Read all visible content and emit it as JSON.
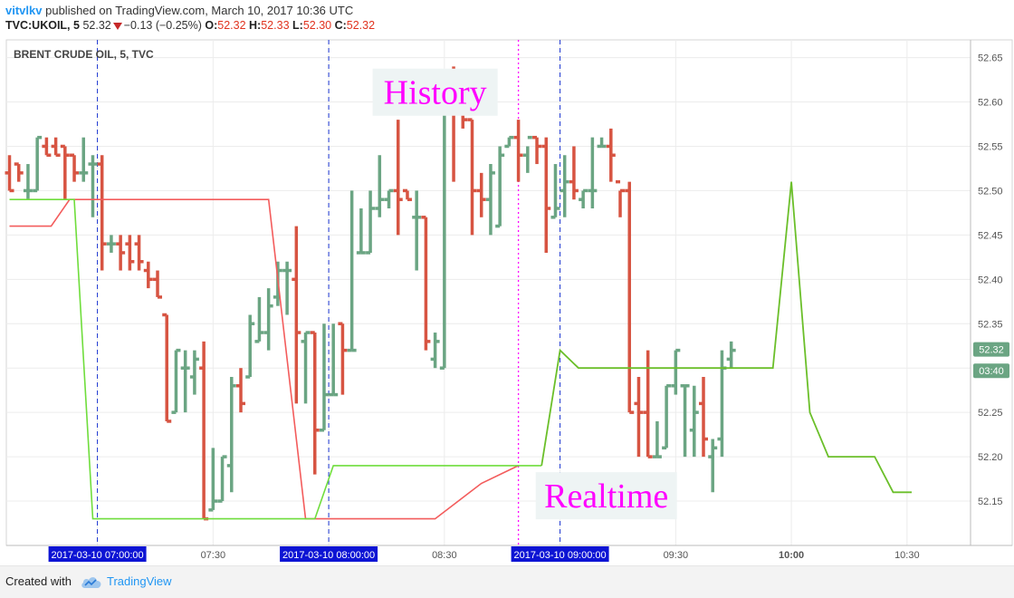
{
  "header": {
    "author": "vitvlkv",
    "published_text": "published on TradingView.com, March 10, 2017 10:36 UTC",
    "symbol": "TVC:UKOIL, 5",
    "last": "52.32",
    "change": "−0.13 (−0.25%)",
    "o_label": "O:",
    "o_value": "52.32",
    "h_label": "H:",
    "h_value": "52.33",
    "l_label": "L:",
    "l_value": "52.30",
    "c_label": "C:",
    "c_value": "52.32"
  },
  "footer": {
    "created_with": "Created with",
    "brand": "TradingView"
  },
  "chart_data": {
    "type": "ohlc-bar",
    "title": "BRENT CRUDE OIL, 5, TVC",
    "colors": {
      "up": "#6ba583",
      "down": "#d75442",
      "history_line": "#f35c5c",
      "realtime_line": "#6fdd3c",
      "realtime_line_late": "#6bbf2a",
      "annotation": "#ff00ff",
      "price_tag": "#6ba583"
    },
    "y_range": [
      52.1,
      52.67
    ],
    "y_ticks": [
      "52.15",
      "52.20",
      "52.25",
      "52.30",
      "52.35",
      "52.40",
      "52.45",
      "52.50",
      "52.55",
      "52.60",
      "52.65"
    ],
    "x_labels": [
      {
        "slot": 9.5,
        "label": "2017-03-10 07:00:00",
        "highlight": true
      },
      {
        "slot": 22,
        "label": "07:30",
        "highlight": false
      },
      {
        "slot": 34.5,
        "label": "2017-03-10 08:00:00",
        "highlight": true
      },
      {
        "slot": 47,
        "label": "08:30",
        "highlight": false
      },
      {
        "slot": 59.5,
        "label": "2017-03-10 09:00:00",
        "highlight": true
      },
      {
        "slot": 72,
        "label": "09:30",
        "highlight": false
      },
      {
        "slot": 84.5,
        "label": "10:00",
        "highlight": false,
        "bold": true
      },
      {
        "slot": 97,
        "label": "10:30",
        "highlight": false
      }
    ],
    "price_tags": [
      {
        "label": "52.32",
        "value": 52.32
      },
      {
        "label": "03:40",
        "value": 52.3
      }
    ],
    "annotations": [
      {
        "text": "History",
        "slot": 46,
        "value": 52.61
      },
      {
        "text": "Realtime",
        "slot": 64.5,
        "value": 52.155
      }
    ],
    "session_lines": [
      9.5,
      34.5,
      59.5
    ],
    "realtime_marker": 55,
    "bars": [
      [
        52.52,
        52.54,
        52.5,
        52.5
      ],
      [
        52.53,
        52.53,
        52.51,
        52.52
      ],
      [
        52.5,
        52.53,
        52.49,
        52.5
      ],
      [
        52.5,
        52.56,
        52.5,
        52.56
      ],
      [
        52.55,
        52.56,
        52.54,
        52.54
      ],
      [
        52.55,
        52.56,
        52.54,
        52.54
      ],
      [
        52.55,
        52.55,
        52.49,
        52.54
      ],
      [
        52.54,
        52.54,
        52.51,
        52.52
      ],
      [
        52.52,
        52.56,
        52.51,
        52.52
      ],
      [
        52.53,
        52.54,
        52.47,
        52.53
      ],
      [
        52.53,
        52.54,
        52.41,
        52.44
      ],
      [
        52.44,
        52.45,
        52.43,
        52.44
      ],
      [
        52.44,
        52.45,
        52.41,
        52.43
      ],
      [
        52.44,
        52.45,
        52.41,
        52.42
      ],
      [
        52.44,
        52.45,
        52.41,
        52.42
      ],
      [
        52.41,
        52.42,
        52.39,
        52.4
      ],
      [
        52.4,
        52.41,
        52.38,
        52.38
      ],
      [
        52.36,
        52.36,
        52.24,
        52.24
      ],
      [
        52.25,
        52.32,
        52.25,
        52.32
      ],
      [
        52.3,
        52.32,
        52.25,
        52.3
      ],
      [
        52.29,
        52.32,
        52.27,
        52.31
      ],
      [
        52.3,
        52.33,
        52.13,
        52.13
      ],
      [
        52.14,
        52.21,
        52.14,
        52.15
      ],
      [
        52.15,
        52.2,
        52.15,
        52.2
      ],
      [
        52.19,
        52.29,
        52.16,
        52.28
      ],
      [
        52.28,
        52.3,
        52.25,
        52.26
      ],
      [
        52.29,
        52.36,
        52.29,
        52.35
      ],
      [
        52.33,
        52.38,
        52.33,
        52.34
      ],
      [
        52.34,
        52.39,
        52.32,
        52.37
      ],
      [
        52.38,
        52.42,
        52.37,
        52.41
      ],
      [
        52.41,
        52.42,
        52.36,
        52.41
      ],
      [
        52.4,
        52.46,
        52.26,
        52.34
      ],
      [
        52.33,
        52.34,
        52.26,
        52.34
      ],
      [
        52.34,
        52.34,
        52.18,
        52.23
      ],
      [
        52.23,
        52.35,
        52.23,
        52.27
      ],
      [
        52.27,
        52.35,
        52.27,
        52.27
      ],
      [
        52.35,
        52.35,
        52.27,
        52.32
      ],
      [
        52.32,
        52.5,
        52.32,
        52.32
      ],
      [
        52.43,
        52.48,
        52.43,
        52.43
      ],
      [
        52.43,
        52.5,
        52.43,
        52.48
      ],
      [
        52.48,
        52.54,
        52.47,
        52.49
      ],
      [
        52.49,
        52.5,
        52.48,
        52.5
      ],
      [
        52.5,
        52.58,
        52.45,
        52.49
      ],
      [
        52.5,
        52.5,
        52.49,
        52.49
      ],
      [
        52.47,
        52.5,
        52.41,
        52.47
      ],
      [
        52.47,
        52.47,
        52.32,
        52.33
      ],
      [
        52.31,
        52.34,
        52.3,
        52.33
      ],
      [
        52.3,
        52.62,
        52.3,
        52.62
      ],
      [
        52.63,
        52.64,
        52.51,
        52.6
      ],
      [
        52.6,
        52.59,
        52.57,
        52.58
      ],
      [
        52.58,
        52.58,
        52.45,
        52.5
      ],
      [
        52.5,
        52.52,
        52.47,
        52.49
      ],
      [
        52.49,
        52.53,
        52.45,
        52.52
      ],
      [
        52.46,
        52.55,
        52.46,
        52.54
      ],
      [
        52.55,
        52.56,
        52.55,
        52.56
      ],
      [
        52.56,
        52.58,
        52.51,
        52.54
      ],
      [
        52.54,
        52.55,
        52.52,
        52.56
      ],
      [
        52.56,
        52.56,
        52.53,
        52.55
      ],
      [
        52.55,
        52.56,
        52.43,
        52.48
      ],
      [
        52.47,
        52.53,
        52.47,
        52.48
      ],
      [
        52.5,
        52.54,
        52.47,
        52.51
      ],
      [
        52.51,
        52.55,
        52.49,
        52.5
      ],
      [
        52.49,
        52.5,
        52.48,
        52.5
      ],
      [
        52.5,
        52.56,
        52.48,
        52.5
      ],
      [
        52.55,
        52.56,
        52.55,
        52.55
      ],
      [
        52.55,
        52.57,
        52.51,
        52.54
      ],
      [
        52.51,
        52.5,
        52.47,
        52.5
      ],
      [
        52.5,
        52.51,
        52.25,
        52.25
      ],
      [
        52.26,
        52.29,
        52.2,
        52.25
      ],
      [
        52.25,
        52.32,
        52.2,
        52.2
      ],
      [
        52.2,
        52.24,
        52.2,
        52.2
      ],
      [
        52.21,
        52.28,
        52.21,
        52.28
      ],
      [
        52.28,
        52.32,
        52.27,
        52.32
      ],
      [
        52.28,
        52.28,
        52.2,
        52.28
      ],
      [
        52.23,
        52.28,
        52.2,
        52.25
      ],
      [
        52.26,
        52.29,
        52.2,
        52.22
      ],
      [
        52.2,
        52.22,
        52.16,
        52.21
      ],
      [
        52.22,
        52.32,
        52.2,
        52.3
      ],
      [
        52.31,
        52.33,
        52.3,
        52.32
      ]
    ],
    "history_line": [
      [
        0,
        52.46
      ],
      [
        4.5,
        52.46
      ],
      [
        6.5,
        52.49
      ],
      [
        28,
        52.49
      ],
      [
        32,
        52.13
      ],
      [
        42,
        52.13
      ],
      [
        46,
        52.13
      ],
      [
        51,
        52.17
      ],
      [
        55,
        52.19
      ]
    ],
    "realtime_line": [
      [
        0,
        52.49
      ],
      [
        7,
        52.49
      ],
      [
        9,
        52.13
      ],
      [
        33,
        52.13
      ],
      [
        35,
        52.19
      ],
      [
        55,
        52.19
      ],
      [
        57.5,
        52.19
      ],
      [
        59.5,
        52.32
      ],
      [
        61.5,
        52.3
      ],
      [
        82.5,
        52.3
      ],
      [
        84.5,
        52.51
      ],
      [
        86.5,
        52.25
      ],
      [
        88.5,
        52.2
      ],
      [
        93.5,
        52.2
      ],
      [
        95.5,
        52.16
      ],
      [
        97.5,
        52.16
      ]
    ]
  }
}
